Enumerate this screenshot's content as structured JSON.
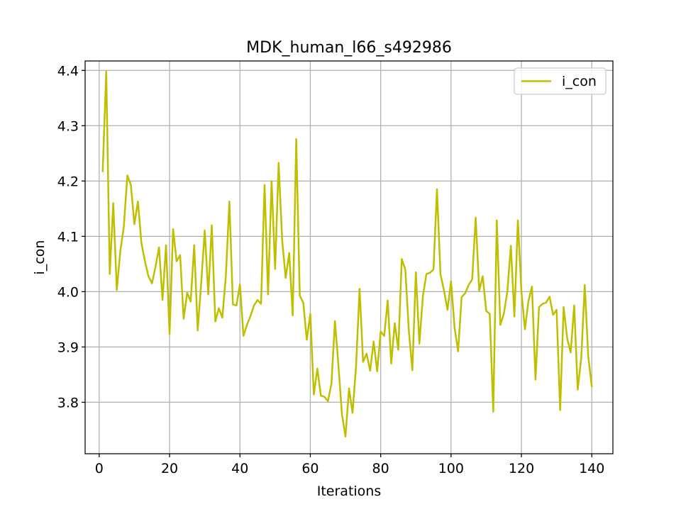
{
  "chart_data": {
    "type": "line",
    "title": "MDK_human_l66_s492986",
    "xlabel": "Iterations",
    "ylabel": "i_con",
    "xlim": [
      -4.0,
      146.0
    ],
    "ylim": [
      3.707,
      4.417
    ],
    "xticks": [
      0,
      20,
      40,
      60,
      80,
      100,
      120,
      140
    ],
    "xtick_labels": [
      "0",
      "20",
      "40",
      "60",
      "80",
      "100",
      "120",
      "140"
    ],
    "yticks": [
      3.8,
      3.9,
      4.0,
      4.1,
      4.2,
      4.3,
      4.4
    ],
    "ytick_labels": [
      "3.8",
      "3.9",
      "4.0",
      "4.1",
      "4.2",
      "4.3",
      "4.4"
    ],
    "grid": true,
    "legend_position": "top-right",
    "series": [
      {
        "name": "i_con",
        "color": "#bfbf00",
        "x": [
          1,
          2,
          3,
          4,
          5,
          6,
          7,
          8,
          9,
          10,
          11,
          12,
          13,
          14,
          15,
          16,
          17,
          18,
          19,
          20,
          21,
          22,
          23,
          24,
          25,
          26,
          27,
          28,
          29,
          30,
          31,
          32,
          33,
          34,
          35,
          36,
          37,
          38,
          39,
          40,
          41,
          42,
          43,
          44,
          45,
          46,
          47,
          48,
          49,
          50,
          51,
          52,
          53,
          54,
          55,
          56,
          57,
          58,
          59,
          60,
          61,
          62,
          63,
          64,
          65,
          66,
          67,
          68,
          69,
          70,
          71,
          72,
          73,
          74,
          75,
          76,
          77,
          78,
          79,
          80,
          81,
          82,
          83,
          84,
          85,
          86,
          87,
          88,
          89,
          90,
          91,
          92,
          93,
          94,
          95,
          96,
          97,
          98,
          99,
          100,
          101,
          102,
          103,
          104,
          105,
          106,
          107,
          108,
          109,
          110,
          111,
          112,
          113,
          114,
          115,
          116,
          117,
          118,
          119,
          120,
          121,
          122,
          123,
          124,
          125,
          126,
          127,
          128,
          129,
          130,
          131,
          132,
          133,
          134,
          135,
          136,
          137,
          138,
          139,
          140
        ],
        "y": [
          4.218,
          4.398,
          4.032,
          4.16,
          4.003,
          4.073,
          4.118,
          4.21,
          4.193,
          4.122,
          4.163,
          4.088,
          4.055,
          4.028,
          4.015,
          4.045,
          4.08,
          3.985,
          4.084,
          3.923,
          4.113,
          4.055,
          4.066,
          3.951,
          3.998,
          3.982,
          4.084,
          3.93,
          4.017,
          4.111,
          3.995,
          4.12,
          3.946,
          3.97,
          3.953,
          4.029,
          4.163,
          3.977,
          3.975,
          4.013,
          3.92,
          3.94,
          3.956,
          3.975,
          3.985,
          3.978,
          4.193,
          3.995,
          4.2,
          4.041,
          4.233,
          4.093,
          4.025,
          4.07,
          3.957,
          4.276,
          3.993,
          3.98,
          3.913,
          3.96,
          3.814,
          3.861,
          3.812,
          3.81,
          3.802,
          3.833,
          3.947,
          3.866,
          3.778,
          3.738,
          3.825,
          3.781,
          3.865,
          4.005,
          3.873,
          3.888,
          3.857,
          3.91,
          3.856,
          3.928,
          3.92,
          3.984,
          3.87,
          3.943,
          3.895,
          4.059,
          4.04,
          3.93,
          3.858,
          4.035,
          3.906,
          3.992,
          4.032,
          4.034,
          4.04,
          4.185,
          4.031,
          4.002,
          3.967,
          4.019,
          3.935,
          3.892,
          3.99,
          3.997,
          4.012,
          4.022,
          4.134,
          4.002,
          4.028,
          3.965,
          3.96,
          3.783,
          4.129,
          3.94,
          3.96,
          4.0,
          4.083,
          3.955,
          4.129,
          4.0,
          3.932,
          3.983,
          4.009,
          3.841,
          3.972,
          3.978,
          3.98,
          3.991,
          3.958,
          3.967,
          3.786,
          3.972,
          3.916,
          3.89,
          3.975,
          3.823,
          3.88,
          4.012,
          3.882,
          3.829
        ]
      }
    ]
  }
}
